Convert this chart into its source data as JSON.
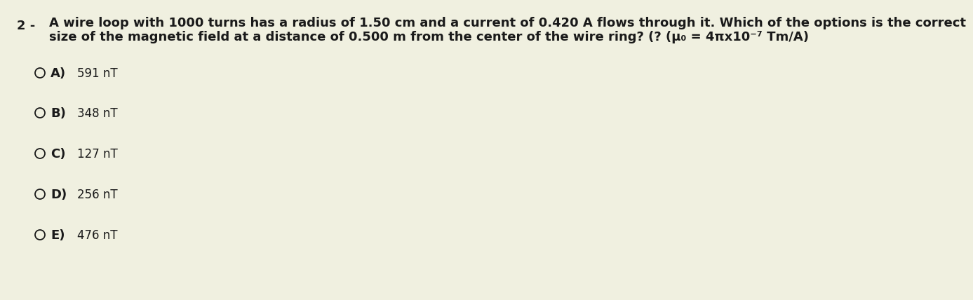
{
  "background_color": "#f0f0e0",
  "question_number": "2 -",
  "title_line1": "A wire loop with 1000 turns has a radius of 1.50 cm and a current of 0.420 A flows through it. Which of the options is the correct",
  "title_line2": "size of the magnetic field at a distance of 0.500 m from the center of the wire ring? (? (μ₀ = 4πx10⁻⁷ Tm/A)",
  "title_fontsize": 13,
  "title_fontweight": "bold",
  "options": [
    {
      "label": "A)",
      "text": "591 nT"
    },
    {
      "label": "B)",
      "text": "348 nT"
    },
    {
      "label": "C)",
      "text": "127 nT"
    },
    {
      "label": "D)",
      "text": "256 nT"
    },
    {
      "label": "E)",
      "text": "476 nT"
    }
  ],
  "option_label_fontsize": 13,
  "option_text_fontsize": 12,
  "text_color": "#1a1a1a",
  "circle_color": "#1a1a1a"
}
